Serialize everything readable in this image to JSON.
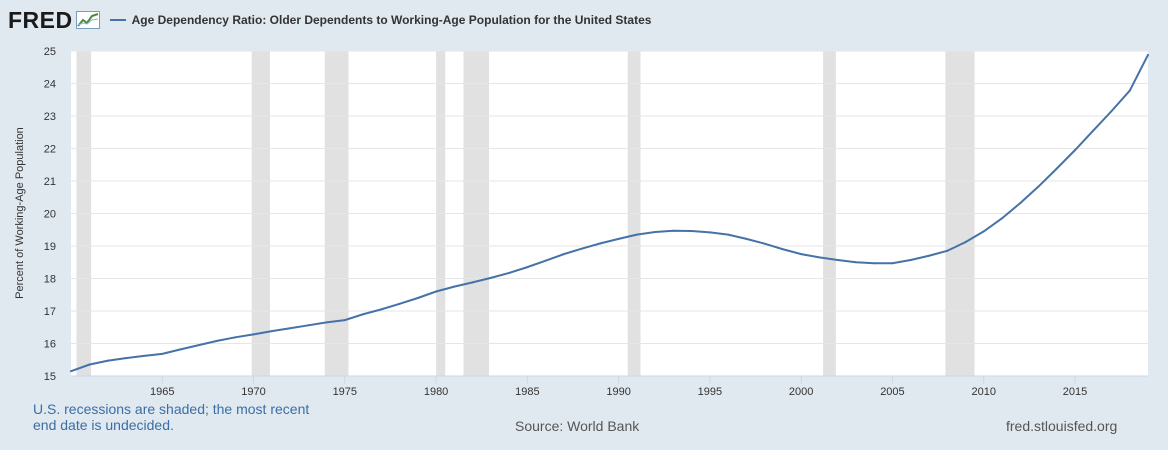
{
  "header": {
    "logo_text": "FRED",
    "legend_label": "Age Dependency Ratio: Older Dependents to Working-Age Population for the United States"
  },
  "colors": {
    "line": "#4572a7",
    "recession": "#e1e1e1",
    "plot_bg": "#ffffff",
    "page_bg": "#e1e9f0"
  },
  "chart_data": {
    "type": "line",
    "title": "Age Dependency Ratio: Older Dependents to Working-Age Population for the United States",
    "ylabel": "Percent of Working-Age Population",
    "xlabel": "",
    "xlim": [
      1960,
      2019
    ],
    "ylim": [
      15,
      25
    ],
    "x_ticks": [
      1965,
      1970,
      1975,
      1980,
      1985,
      1990,
      1995,
      2000,
      2005,
      2010,
      2015
    ],
    "y_ticks": [
      15,
      16,
      17,
      18,
      19,
      20,
      21,
      22,
      23,
      24,
      25
    ],
    "grid": true,
    "recessions": [
      [
        1960.3,
        1961.1
      ],
      [
        1969.9,
        1970.9
      ],
      [
        1973.9,
        1975.2
      ],
      [
        1980.0,
        1980.5
      ],
      [
        1981.5,
        1982.9
      ],
      [
        1990.5,
        1991.2
      ],
      [
        2001.2,
        2001.9
      ],
      [
        2007.9,
        2009.5
      ]
    ],
    "series": [
      {
        "x": [
          1960,
          1961,
          1962,
          1963,
          1964,
          1965,
          1966,
          1967,
          1968,
          1969,
          1970,
          1971,
          1972,
          1973,
          1974,
          1975,
          1976,
          1977,
          1978,
          1979,
          1980,
          1981,
          1982,
          1983,
          1984,
          1985,
          1986,
          1987,
          1988,
          1989,
          1990,
          1991,
          1992,
          1993,
          1994,
          1995,
          1996,
          1997,
          1998,
          1999,
          2000,
          2001,
          2002,
          2003,
          2004,
          2005,
          2006,
          2007,
          2008,
          2009,
          2010,
          2011,
          2012,
          2013,
          2014,
          2015,
          2016,
          2017,
          2018,
          2019
        ],
        "values": [
          15.15,
          15.35,
          15.47,
          15.55,
          15.62,
          15.68,
          15.82,
          15.95,
          16.08,
          16.19,
          16.28,
          16.38,
          16.47,
          16.56,
          16.65,
          16.72,
          16.9,
          17.05,
          17.22,
          17.4,
          17.6,
          17.75,
          17.88,
          18.02,
          18.17,
          18.35,
          18.55,
          18.75,
          18.92,
          19.08,
          19.22,
          19.35,
          19.43,
          19.47,
          19.46,
          19.42,
          19.35,
          19.22,
          19.07,
          18.9,
          18.75,
          18.65,
          18.57,
          18.5,
          18.47,
          18.47,
          18.57,
          18.7,
          18.85,
          19.12,
          19.45,
          19.85,
          20.32,
          20.83,
          21.38,
          21.95,
          22.55,
          23.15,
          23.78,
          24.88
        ]
      }
    ]
  },
  "footer": {
    "note": "U.S. recessions are shaded; the most recent end date is undecided.",
    "source": "Source: World Bank",
    "site": "fred.stlouisfed.org"
  }
}
